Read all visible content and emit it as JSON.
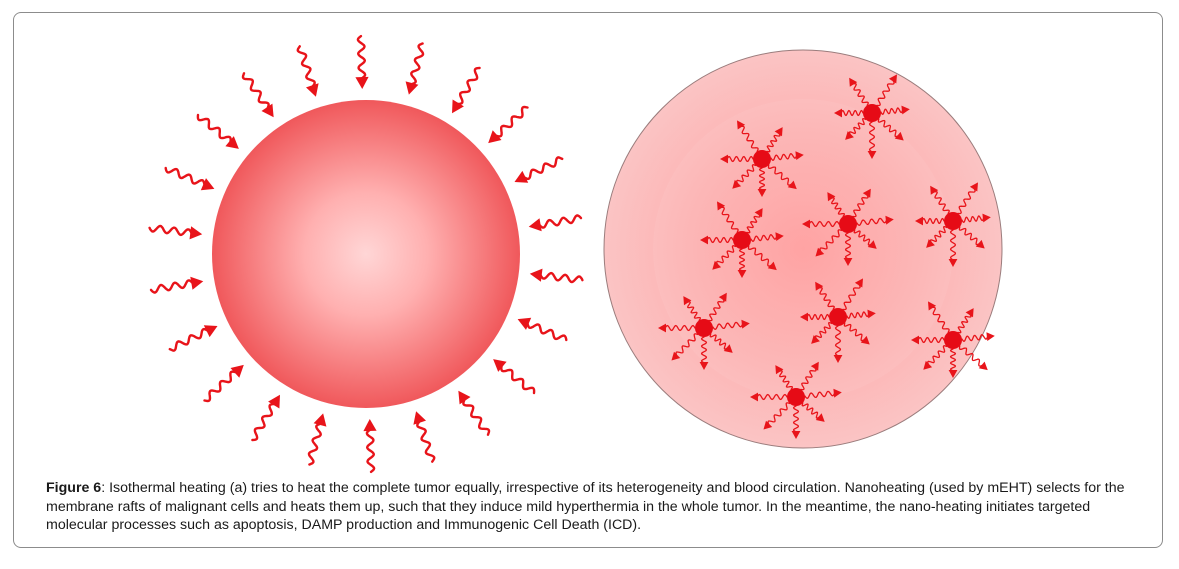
{
  "caption": {
    "label": "Figure 6",
    "text": ": Isothermal heating (a) tries to heat the complete tumor equally, irrespective of its heterogeneity and blood circulation. Nanoheating (used by mEHT) selects for the membrane rafts of malignant cells and heats them up, such that they induce mild hyperthermia in the whole tumor. In the meantime, the nano-heating initiates targeted molecular processes such as apoptosis, DAMP production and Immunogenic Cell Death (ICD)."
  },
  "colors": {
    "arrow": "#e8141a",
    "tumor_edge": "#f0595c",
    "tumor_center": "#ffd3d3",
    "cell": "#e60b16",
    "nano_bg_edge": "#f7b4b4",
    "nano_bg_center": "#ff9b9b"
  },
  "icons": {
    "left": "isothermal-heated-tumor-icon",
    "right": "nanoheated-tumor-icon",
    "arrow": "wavy-heat-arrow-icon",
    "cell": "malignant-cell-icon"
  }
}
